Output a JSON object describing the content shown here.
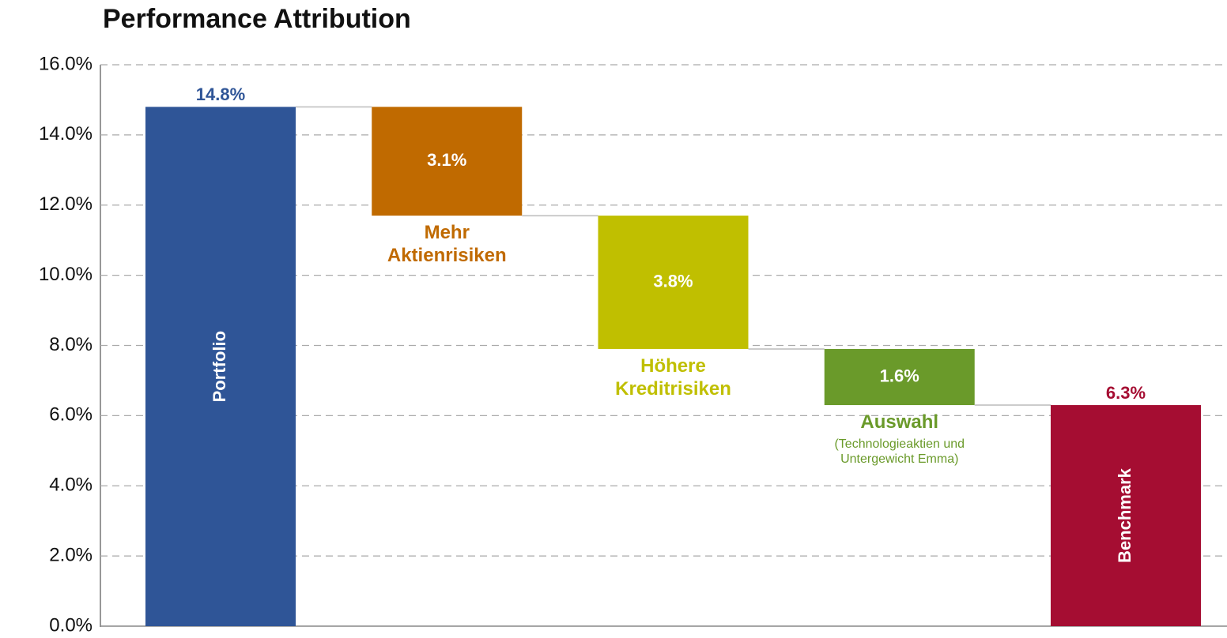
{
  "chart_data": {
    "type": "waterfall",
    "title": "Performance Attribution",
    "categories": [
      "Portfolio",
      "Mehr\nAktienrisiken",
      "Höhere\nKreditrisiken",
      "Auswahl",
      "Benchmark"
    ],
    "notes": [
      null,
      null,
      null,
      "(Technologieaktien und\nUntergewicht Emma)",
      null
    ],
    "measure": [
      "total",
      "decrease",
      "decrease",
      "decrease",
      "total"
    ],
    "values": [
      14.8,
      3.1,
      3.8,
      1.6,
      6.3
    ],
    "value_labels": [
      "14.8%",
      "3.1%",
      "3.8%",
      "1.6%",
      "6.3%"
    ],
    "colors": [
      "#2f5597",
      "#c06a00",
      "#c0bf00",
      "#6a9a2a",
      "#a50d32"
    ],
    "ylim": [
      0,
      16
    ],
    "yticks": [
      {
        "value": 0,
        "label": "0.0%"
      },
      {
        "value": 2,
        "label": "2.0%"
      },
      {
        "value": 4,
        "label": "4.0%"
      },
      {
        "value": 6,
        "label": "6.0%"
      },
      {
        "value": 8,
        "label": "8.0%"
      },
      {
        "value": 10,
        "label": "10.0%"
      },
      {
        "value": 12,
        "label": "12.0%"
      },
      {
        "value": 14,
        "label": "14.0%"
      },
      {
        "value": 16,
        "label": "16.0%"
      }
    ],
    "grid": true
  }
}
